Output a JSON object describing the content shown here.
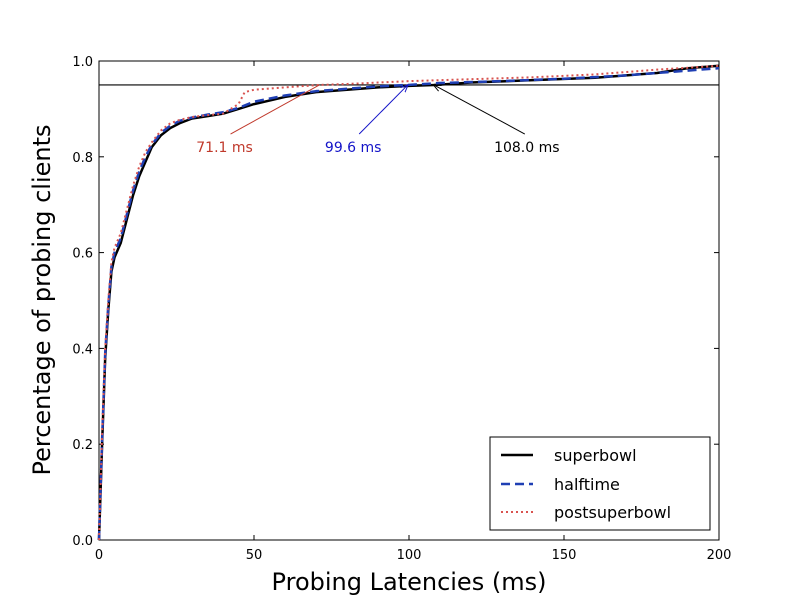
{
  "chart_data": {
    "type": "line",
    "xlabel": "Probing Latencies (ms)",
    "ylabel": "Percentage of probing clients",
    "xlim": [
      0,
      200
    ],
    "ylim": [
      0,
      1.0
    ],
    "xticks": [
      0,
      50,
      100,
      150,
      200
    ],
    "yticks": [
      0.0,
      0.2,
      0.4,
      0.6,
      0.8,
      1.0
    ],
    "xtick_labels": [
      "0",
      "50",
      "100",
      "150",
      "200"
    ],
    "ytick_labels": [
      "0.0",
      "0.2",
      "0.4",
      "0.6",
      "0.8",
      "1.0"
    ],
    "grid": false,
    "legend_position": "lower-right",
    "reference_line": {
      "y": 0.95
    },
    "series": [
      {
        "name": "superbowl",
        "color": "#000000",
        "style": "solid",
        "x": [
          0,
          1,
          2,
          3,
          4,
          5,
          7,
          9,
          11,
          13,
          15,
          17,
          20,
          23,
          26,
          30,
          35,
          40,
          45,
          50,
          60,
          70,
          80,
          90,
          100,
          108,
          120,
          140,
          160,
          180,
          190,
          200
        ],
        "y": [
          0,
          0.2,
          0.38,
          0.48,
          0.56,
          0.59,
          0.62,
          0.67,
          0.72,
          0.76,
          0.79,
          0.82,
          0.845,
          0.86,
          0.87,
          0.88,
          0.885,
          0.89,
          0.9,
          0.91,
          0.925,
          0.935,
          0.94,
          0.945,
          0.948,
          0.95,
          0.955,
          0.96,
          0.965,
          0.975,
          0.985,
          0.99
        ]
      },
      {
        "name": "halftime",
        "color": "#1f3fb4",
        "style": "dashed",
        "x": [
          0,
          1,
          2,
          3,
          4,
          5,
          7,
          9,
          11,
          13,
          15,
          17,
          20,
          23,
          26,
          30,
          35,
          40,
          45,
          50,
          60,
          70,
          80,
          90,
          99.6,
          110,
          130,
          150,
          170,
          190,
          200
        ],
        "y": [
          0,
          0.21,
          0.39,
          0.49,
          0.57,
          0.6,
          0.63,
          0.68,
          0.73,
          0.77,
          0.8,
          0.825,
          0.85,
          0.865,
          0.875,
          0.882,
          0.888,
          0.893,
          0.902,
          0.915,
          0.928,
          0.937,
          0.942,
          0.947,
          0.95,
          0.954,
          0.958,
          0.963,
          0.97,
          0.98,
          0.985
        ]
      },
      {
        "name": "postsuperbowl",
        "color": "#d9534f",
        "style": "dotted",
        "x": [
          0,
          1,
          2,
          3,
          4,
          5,
          7,
          9,
          11,
          13,
          15,
          17,
          20,
          23,
          26,
          30,
          35,
          40,
          45,
          47,
          50,
          60,
          71.1,
          80,
          90,
          100,
          120,
          140,
          160,
          180,
          200
        ],
        "y": [
          0,
          0.22,
          0.4,
          0.5,
          0.58,
          0.61,
          0.64,
          0.69,
          0.74,
          0.78,
          0.81,
          0.83,
          0.855,
          0.87,
          0.877,
          0.883,
          0.887,
          0.89,
          0.91,
          0.935,
          0.94,
          0.945,
          0.95,
          0.952,
          0.955,
          0.958,
          0.962,
          0.966,
          0.972,
          0.982,
          0.99
        ]
      }
    ],
    "annotations": [
      {
        "id": "post",
        "text": "71.1 ms",
        "color": "#c0392b",
        "point": [
          71.1,
          0.95
        ],
        "text_at": [
          40.5,
          0.81
        ],
        "anchor": "middle"
      },
      {
        "id": "half",
        "text": "99.6 ms",
        "color": "#1414c8",
        "point": [
          99.6,
          0.95
        ],
        "text_at": [
          82,
          0.81
        ],
        "anchor": "middle"
      },
      {
        "id": "super",
        "text": "108.0 ms",
        "color": "#000000",
        "point": [
          108,
          0.95
        ],
        "text_at": [
          138,
          0.81
        ],
        "anchor": "middle"
      }
    ]
  }
}
